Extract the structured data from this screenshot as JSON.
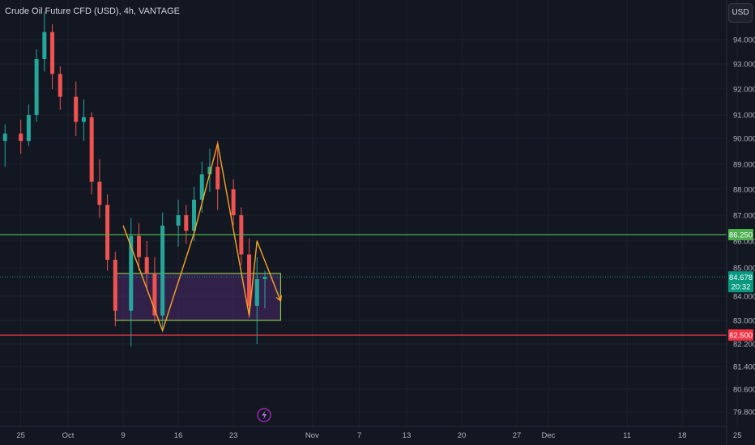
{
  "title": "Crude Oil Future CFD (USD), 4h, VANTAGE",
  "currency": "USD",
  "live_tag_time": "20:32",
  "chart_data": {
    "type": "candlestick",
    "y_scale": "tradingview_price_axis",
    "y_ticks": [
      "94.000",
      "93.000",
      "92.000",
      "91.000",
      "90.000",
      "89.000",
      "88.000",
      "87.000",
      "86.000",
      "85.000",
      "84.000",
      "83.000",
      "82.200",
      "81.400",
      "80.600",
      "79.800"
    ],
    "x_ticks": [
      "25",
      "Oct",
      "9",
      "16",
      "23",
      "Nov",
      "7",
      "13",
      "20",
      "27",
      "Dec",
      "11",
      "18",
      "25"
    ],
    "horizontal_levels": [
      {
        "value": 86.25,
        "label": "86.250",
        "color": "#4caf50"
      },
      {
        "value": 82.5,
        "label": "82.500",
        "color": "#f23645"
      }
    ],
    "last_price": {
      "value": 84.678,
      "label": "84.678",
      "color": "#089981"
    },
    "zone": {
      "low": 83.0,
      "high": 84.8,
      "color": "#8bc34a",
      "fill": "#4a2a6a"
    },
    "pattern_path": [
      {
        "date": "2023-10-08",
        "price": 86.6
      },
      {
        "date": "2023-10-13",
        "price": 82.65
      },
      {
        "date": "2023-10-17",
        "price": 86.3
      },
      {
        "date": "2023-10-20",
        "price": 89.8
      },
      {
        "date": "2023-10-24",
        "price": 83.2
      },
      {
        "date": "2023-10-25",
        "price": 86.0
      },
      {
        "date": "2023-10-28",
        "price": 83.8
      }
    ],
    "candles": [
      {
        "date": "2023-09-21",
        "o": 89.8,
        "h": 91.0,
        "l": 89.2,
        "c": 90.4
      },
      {
        "date": "2023-09-22",
        "o": 90.4,
        "h": 91.2,
        "l": 89.6,
        "c": 89.9
      },
      {
        "date": "2023-09-23",
        "o": 89.9,
        "h": 90.6,
        "l": 88.9,
        "c": 90.2
      },
      {
        "date": "2023-09-25",
        "o": 90.2,
        "h": 90.8,
        "l": 89.4,
        "c": 89.9
      },
      {
        "date": "2023-09-26",
        "o": 89.9,
        "h": 91.4,
        "l": 89.7,
        "c": 91.0
      },
      {
        "date": "2023-09-27",
        "o": 91.0,
        "h": 93.6,
        "l": 90.7,
        "c": 93.2
      },
      {
        "date": "2023-09-28",
        "o": 93.2,
        "h": 95.1,
        "l": 92.7,
        "c": 94.3
      },
      {
        "date": "2023-09-29",
        "o": 94.3,
        "h": 94.6,
        "l": 92.0,
        "c": 92.6
      },
      {
        "date": "2023-09-30",
        "o": 92.6,
        "h": 92.9,
        "l": 91.2,
        "c": 91.7
      },
      {
        "date": "2023-10-02",
        "o": 91.7,
        "h": 92.3,
        "l": 90.1,
        "c": 90.7
      },
      {
        "date": "2023-10-03",
        "o": 90.7,
        "h": 91.6,
        "l": 89.9,
        "c": 90.9
      },
      {
        "date": "2023-10-04",
        "o": 90.9,
        "h": 91.1,
        "l": 87.8,
        "c": 88.3
      },
      {
        "date": "2023-10-05",
        "o": 88.3,
        "h": 89.2,
        "l": 86.9,
        "c": 87.4
      },
      {
        "date": "2023-10-06",
        "o": 87.4,
        "h": 87.8,
        "l": 84.9,
        "c": 85.3
      },
      {
        "date": "2023-10-07",
        "o": 85.3,
        "h": 85.6,
        "l": 82.8,
        "c": 83.4
      },
      {
        "date": "2023-10-09",
        "o": 83.4,
        "h": 86.9,
        "l": 82.1,
        "c": 86.2
      },
      {
        "date": "2023-10-10",
        "o": 86.2,
        "h": 86.7,
        "l": 84.9,
        "c": 85.4
      },
      {
        "date": "2023-10-11",
        "o": 85.4,
        "h": 86.0,
        "l": 84.3,
        "c": 84.8
      },
      {
        "date": "2023-10-12",
        "o": 84.8,
        "h": 85.4,
        "l": 82.9,
        "c": 83.2
      },
      {
        "date": "2023-10-13",
        "o": 83.2,
        "h": 87.1,
        "l": 82.6,
        "c": 86.6
      },
      {
        "date": "2023-10-15",
        "o": 86.6,
        "h": 87.6,
        "l": 85.8,
        "c": 87.0
      },
      {
        "date": "2023-10-16",
        "o": 87.0,
        "h": 87.4,
        "l": 85.9,
        "c": 86.4
      },
      {
        "date": "2023-10-17",
        "o": 86.4,
        "h": 88.1,
        "l": 86.0,
        "c": 87.6
      },
      {
        "date": "2023-10-18",
        "o": 87.6,
        "h": 89.1,
        "l": 87.1,
        "c": 88.6
      },
      {
        "date": "2023-10-19",
        "o": 88.6,
        "h": 89.6,
        "l": 87.9,
        "c": 88.9
      },
      {
        "date": "2023-10-20",
        "o": 88.9,
        "h": 89.9,
        "l": 87.2,
        "c": 88.0
      },
      {
        "date": "2023-10-22",
        "o": 88.0,
        "h": 88.4,
        "l": 86.6,
        "c": 87.0
      },
      {
        "date": "2023-10-23",
        "o": 87.0,
        "h": 87.3,
        "l": 85.1,
        "c": 85.5
      },
      {
        "date": "2023-10-24",
        "o": 85.5,
        "h": 86.1,
        "l": 83.1,
        "c": 83.6
      },
      {
        "date": "2023-10-25",
        "o": 83.6,
        "h": 85.4,
        "l": 82.2,
        "c": 84.6
      },
      {
        "date": "2023-10-26",
        "o": 84.6,
        "h": 84.9,
        "l": 83.5,
        "c": 84.68
      }
    ]
  }
}
